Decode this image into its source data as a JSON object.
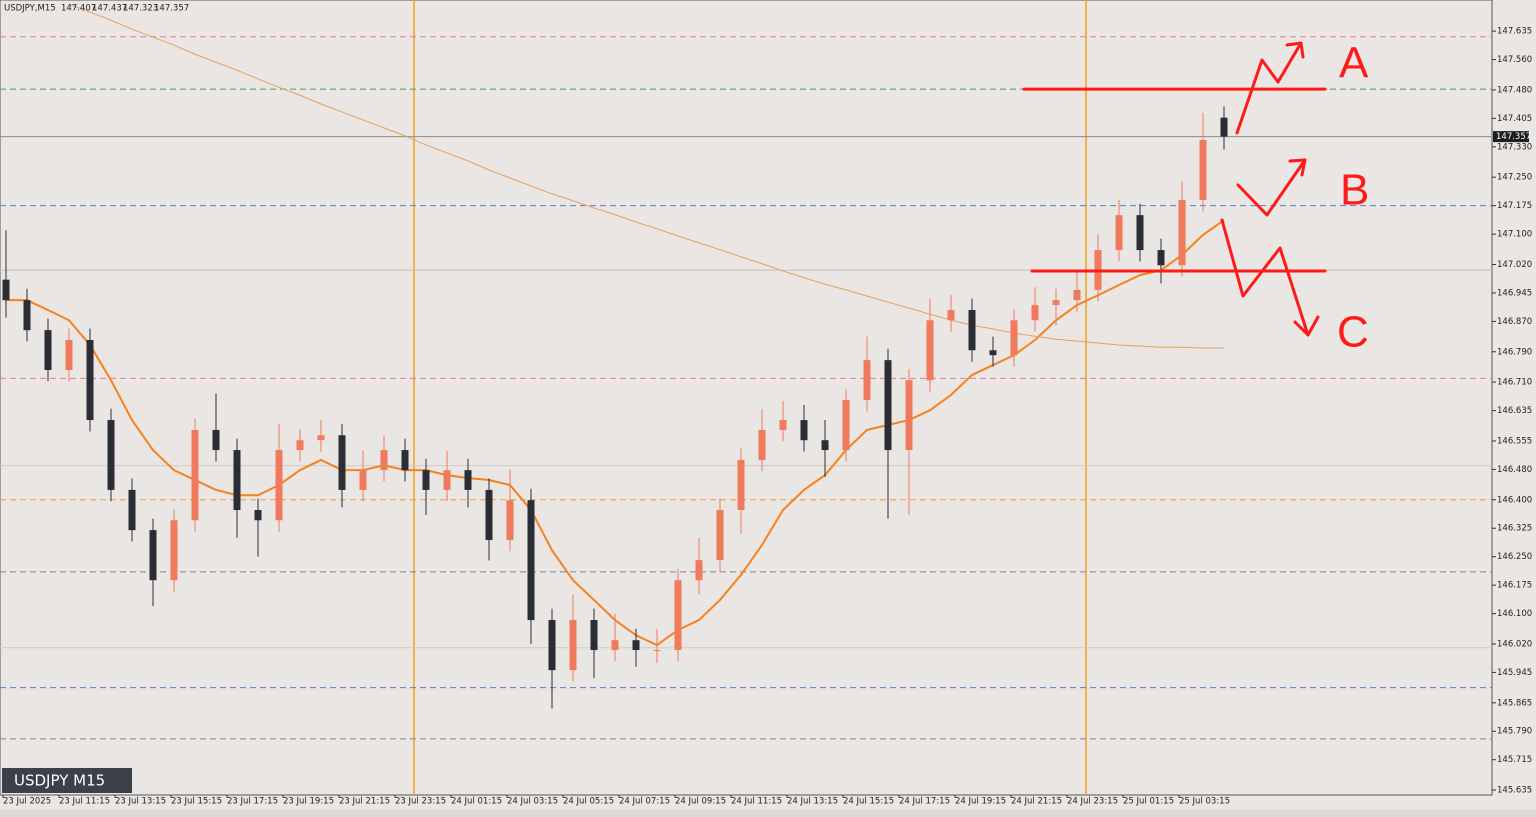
{
  "chart_data": {
    "type": "candlestick",
    "title": "USDJPY,M15",
    "badge": "USDJPY M15",
    "x_labels": [
      "23 Jul 2025",
      "23 Jul 11:15",
      "23 Jul 13:15",
      "23 Jul 15:15",
      "23 Jul 17:15",
      "23 Jul 19:15",
      "23 Jul 21:15",
      "23 Jul 23:15",
      "24 Jul 01:15",
      "24 Jul 03:15",
      "24 Jul 05:15",
      "24 Jul 07:15",
      "24 Jul 09:15",
      "24 Jul 11:15",
      "24 Jul 13:15",
      "24 Jul 15:15",
      "24 Jul 17:15",
      "24 Jul 19:15",
      "24 Jul 21:15",
      "24 Jul 23:15",
      "25 Jul 01:15",
      "25 Jul 03:15"
    ],
    "open": [
      146.98,
      146.926,
      146.847,
      146.742,
      146.821,
      146.61,
      146.426,
      146.32,
      146.188,
      146.346,
      146.584,
      146.531,
      146.373,
      146.346,
      146.531,
      146.557,
      146.57,
      146.426,
      146.478,
      146.531,
      146.478,
      146.426,
      146.478,
      146.426,
      146.294,
      146.399,
      146.083,
      145.951,
      146.083,
      146.004,
      146.03,
      146.004,
      146.004,
      146.188,
      146.241,
      146.373,
      146.505,
      146.584,
      146.61,
      146.557,
      146.531,
      146.663,
      146.768,
      146.531,
      146.715,
      146.873,
      146.9,
      146.794,
      146.781,
      146.873,
      146.913,
      146.926,
      146.953,
      147.058,
      147.15,
      147.058,
      147.018,
      147.19,
      147.407
    ],
    "high": [
      147.11,
      146.956,
      146.877,
      146.851,
      146.851,
      146.64,
      146.456,
      146.35,
      146.376,
      146.614,
      146.68,
      146.561,
      146.403,
      146.6,
      146.587,
      146.61,
      146.6,
      146.53,
      146.57,
      146.561,
      146.508,
      146.53,
      146.508,
      146.456,
      146.48,
      146.429,
      146.113,
      146.15,
      146.113,
      146.1,
      146.06,
      146.06,
      146.218,
      146.3,
      146.403,
      146.535,
      146.64,
      146.66,
      146.65,
      146.61,
      146.693,
      146.83,
      146.798,
      146.745,
      146.93,
      146.94,
      146.93,
      146.83,
      146.903,
      146.96,
      146.956,
      147.0,
      147.1,
      147.19,
      147.18,
      147.088,
      147.24,
      147.42,
      147.437
    ],
    "low": [
      146.88,
      146.817,
      146.712,
      146.712,
      146.58,
      146.396,
      146.29,
      146.12,
      146.158,
      146.316,
      146.501,
      146.3,
      146.25,
      146.316,
      146.501,
      146.527,
      146.38,
      146.396,
      146.448,
      146.448,
      146.36,
      146.396,
      146.38,
      146.24,
      146.264,
      146.02,
      145.85,
      145.921,
      145.93,
      145.974,
      145.96,
      145.97,
      145.974,
      146.15,
      146.211,
      146.31,
      146.475,
      146.554,
      146.527,
      146.46,
      146.501,
      146.633,
      146.35,
      146.36,
      146.685,
      146.843,
      146.764,
      146.751,
      146.751,
      146.843,
      146.86,
      146.896,
      146.923,
      147.028,
      147.028,
      146.97,
      146.988,
      147.16,
      147.323
    ],
    "close": [
      146.926,
      146.847,
      146.742,
      146.821,
      146.61,
      146.426,
      146.32,
      146.188,
      146.346,
      146.584,
      146.531,
      146.373,
      146.346,
      146.531,
      146.557,
      146.57,
      146.426,
      146.478,
      146.531,
      146.478,
      146.426,
      146.478,
      146.426,
      146.294,
      146.399,
      146.083,
      145.951,
      146.083,
      146.004,
      146.03,
      146.004,
      146.004,
      146.188,
      146.241,
      146.373,
      146.505,
      146.584,
      146.61,
      146.557,
      146.531,
      146.663,
      146.768,
      146.531,
      146.715,
      146.873,
      146.9,
      146.794,
      146.781,
      146.873,
      146.913,
      146.926,
      146.953,
      147.058,
      147.15,
      147.058,
      147.018,
      147.19,
      147.348,
      147.357
    ],
    "up_color": "#f07a5c",
    "down_color": "#2a2d36",
    "averages": [
      {
        "color": "#f5821f",
        "width": 2,
        "values": [
          146.926,
          146.926,
          146.9,
          146.873,
          146.808,
          146.715,
          146.61,
          146.531,
          146.478,
          146.452,
          146.426,
          146.412,
          146.412,
          146.439,
          146.478,
          146.505,
          146.478,
          146.478,
          146.491,
          146.478,
          146.478,
          146.465,
          146.457,
          146.452,
          146.439,
          146.373,
          146.267,
          146.188,
          146.136,
          146.083,
          146.043,
          146.017,
          146.057,
          146.083,
          146.136,
          146.202,
          146.281,
          146.373,
          146.426,
          146.465,
          146.531,
          146.584,
          146.597,
          146.61,
          146.636,
          146.676,
          146.729,
          146.755,
          146.781,
          146.821,
          146.873,
          146.913,
          146.939,
          146.966,
          146.992,
          147.005,
          147.045,
          147.098,
          147.137
        ]
      },
      {
        "color": "#e8a060",
        "width": 1,
        "values": [
          null,
          null,
          null,
          147.706,
          147.685,
          147.664,
          147.64,
          147.619,
          147.598,
          147.574,
          147.553,
          147.532,
          147.509,
          147.487,
          147.466,
          147.443,
          147.422,
          147.401,
          147.38,
          147.359,
          147.335,
          147.314,
          147.293,
          147.269,
          147.248,
          147.227,
          147.206,
          147.188,
          147.169,
          147.151,
          147.132,
          147.114,
          147.095,
          147.077,
          147.059,
          147.04,
          147.022,
          147.003,
          146.985,
          146.968,
          146.953,
          146.937,
          146.921,
          146.905,
          146.889,
          146.873,
          146.86,
          146.85,
          146.839,
          146.831,
          146.823,
          146.818,
          146.813,
          146.808,
          146.805,
          146.802,
          146.802,
          146.8,
          146.8
        ]
      }
    ],
    "levels": [
      {
        "value": 147.62,
        "color": "#e87aa0",
        "dashed": true
      },
      {
        "value": 147.482,
        "color": "#5a9a6a",
        "dashed": true
      },
      {
        "value": 147.357,
        "color": "#8a8a8a",
        "dashed": false
      },
      {
        "value": 147.175,
        "color": "#5b7fbf",
        "dashed": true
      },
      {
        "value": 147.005,
        "color": "#c4c0bc",
        "dashed": false
      },
      {
        "value": 146.72,
        "color": "#e87aa0",
        "dashed": true
      },
      {
        "value": 146.49,
        "color": "#cfcbc7",
        "dashed": false
      },
      {
        "value": 146.4,
        "color": "#f0a030",
        "dashed": true
      },
      {
        "value": 146.21,
        "color": "#7f8590",
        "dashed": true
      },
      {
        "value": 146.01,
        "color": "#cfcbc7",
        "dashed": false
      },
      {
        "value": 145.905,
        "color": "#5b7fbf",
        "dashed": true
      },
      {
        "value": 145.77,
        "color": "#7f8590",
        "dashed": true
      }
    ],
    "drawn_levels": [
      147.482,
      147.003
    ],
    "annotations": [
      "A",
      "B",
      "C"
    ],
    "ylim": [
      145.622,
      147.717
    ],
    "yticks": [
      147.635,
      {
        "value": 147.56,
        "label": "147.560"
      },
      {
        "value": 147.48,
        "label": "147.480"
      },
      147.405,
      {
        "value": 147.33,
        "label": "147.330"
      },
      {
        "value": 147.25,
        "label": "147.250"
      },
      147.175,
      {
        "value": 147.1,
        "label": "147.100"
      },
      {
        "value": 147.02,
        "label": "147.020"
      },
      146.945,
      {
        "value": 146.87,
        "label": "146.870"
      },
      {
        "value": 146.79,
        "label": "146.790"
      },
      {
        "value": 146.71,
        "label": "146.710"
      },
      146.635,
      146.555,
      {
        "value": 146.48,
        "label": "146.480"
      },
      {
        "value": 146.4,
        "label": "146.400"
      },
      146.325,
      {
        "value": 146.25,
        "label": "146.250"
      },
      146.175,
      {
        "value": 146.1,
        "label": "146.100"
      },
      {
        "value": 146.02,
        "label": "146.020"
      },
      145.945,
      145.865,
      {
        "value": 145.79,
        "label": "145.790"
      },
      145.715,
      145.635
    ]
  }
}
